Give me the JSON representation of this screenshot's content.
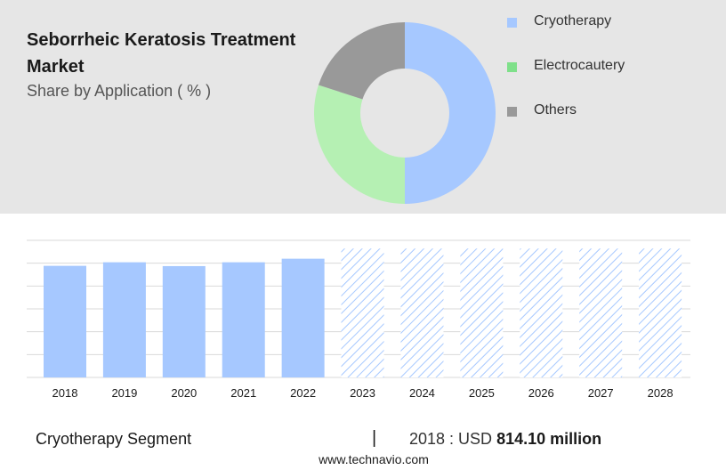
{
  "title": "Seborrheic Keratosis Treatment Market",
  "subtitle": "Share by Application ( % )",
  "colors": {
    "cryotherapy": "#a6c8ff",
    "electrocautery": "#b5f0b3",
    "electrocautery_legend": "#7fe08a",
    "others": "#999999",
    "forecast_hatch": "#a6c8ff",
    "gridline": "#d9d9d9"
  },
  "footer": {
    "segment": "Cryotherapy Segment",
    "separator": "|",
    "year_label": "2018 : USD",
    "value": "814.10 million",
    "source": "www.technavio.com"
  },
  "chart_data": [
    {
      "type": "pie",
      "donut": true,
      "title": "Share by Application ( % )",
      "categories": [
        "Cryotherapy",
        "Electrocautery",
        "Others"
      ],
      "values": [
        50,
        30,
        20
      ],
      "legend_position": "right"
    },
    {
      "type": "bar",
      "categories": [
        "2018",
        "2019",
        "2020",
        "2021",
        "2022",
        "2023",
        "2024",
        "2025",
        "2026",
        "2027",
        "2028"
      ],
      "values": [
        814.1,
        840,
        812,
        840,
        866,
        940,
        940,
        940,
        940,
        940,
        940
      ],
      "forecast_from": "2023",
      "ylim": [
        0,
        1000
      ],
      "grid": true,
      "series_name": "Cryotherapy"
    }
  ]
}
